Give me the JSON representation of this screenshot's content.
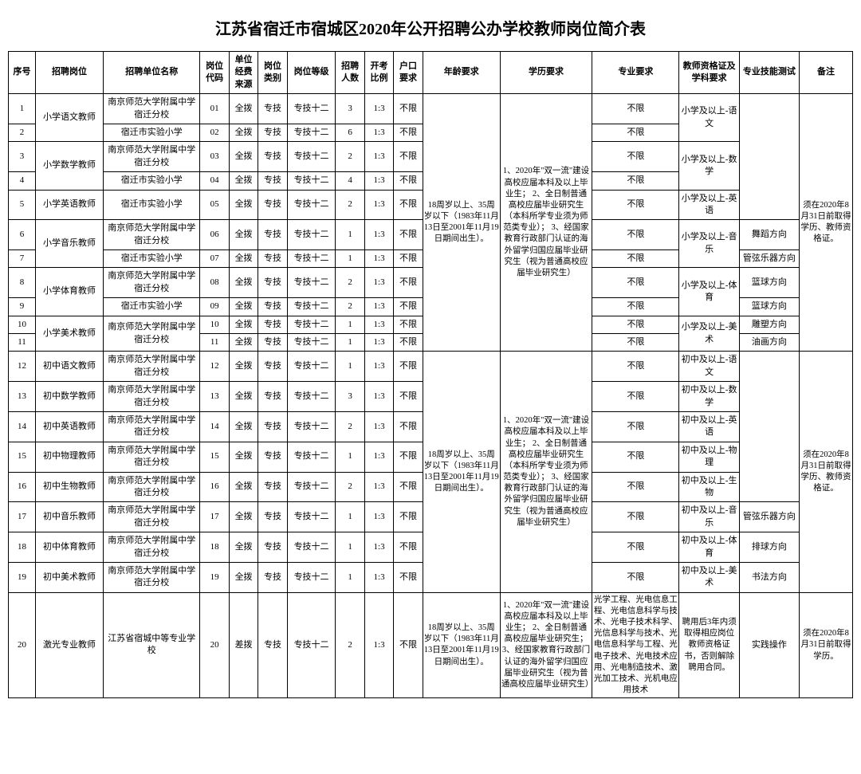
{
  "title": "江苏省宿迁市宿城区2020年公开招聘公办学校教师岗位简介表",
  "headers": {
    "seq": "序号",
    "position": "招聘岗位",
    "unit": "招聘单位名称",
    "code": "岗位代码",
    "fund": "单位经费来源",
    "category": "岗位类别",
    "level": "岗位等级",
    "num": "招聘人数",
    "ratio": "开考比例",
    "hukou": "户口要求",
    "age": "年龄要求",
    "edu": "学历要求",
    "major": "专业要求",
    "cert": "教师资格证及学科要求",
    "skill": "专业技能测试",
    "remark": "备注"
  },
  "common": {
    "fund": "全拨",
    "fund2": "差拨",
    "category": "专技",
    "level": "专技十二",
    "ratio": "1:3",
    "hukou": "不限",
    "major": "不限",
    "unitA": "南京师范大学附属中学宿迁分校",
    "unitB": "宿迁市实验小学",
    "unitC": "江苏省宿城中等专业学校"
  },
  "ageBlock1": "18周岁以上、35周岁以下（1983年11月13日至2001年11月19日期间出生）。",
  "ageBlock2": "18周岁以上、35周岁以下（1983年11月13日至2001年11月19日期间出生）。",
  "ageBlock3": "18周岁以上、35周岁以下（1983年11月13日至2001年11月19日期间出生）。",
  "eduBlock1": "1、2020年\"双一流\"建设高校应届本科及以上毕业生；\n2、全日制普通高校应届毕业研究生（本科所学专业须为师范类专业）；\n3、经国家教育行政部门认证的海外留学归国应届毕业研究生（视为普通高校应届毕业研究生）",
  "eduBlock2": "1、2020年\"双一流\"建设高校应届本科及以上毕业生；\n2、全日制普通高校应届毕业研究生（本科所学专业须为师范类专业）；\n3、经国家教育行政部门认证的海外留学归国应届毕业研究生（视为普通高校应届毕业研究生）",
  "eduBlock3": "1、2020年\"双一流\"建设高校应届本科及以上毕业生；\n2、全日制普通高校应届毕业研究生；\n3、经国家教育行政部门认证的海外留学归国应届毕业研究生（视为普通高校应届毕业研究生）",
  "remarkBlock1": "须在2020年8月31日前取得学历、教师资格证。",
  "remarkBlock2": "须在2020年8月31日前取得学历、教师资格证。",
  "remarkBlock3": "须在2020年8月31日前取得学历。",
  "majorBlock3": "光学工程、光电信息工程、光电信息科学与技术、光电子技术科学、光信息科学与技术、光电信息科学与工程、光电子技术、光电技术应用、光电制造技术、激光加工技术、光机电应用技术",
  "certBlock3": "聘用后3年内须取得相应岗位教师资格证书，否则解除聘用合同。",
  "rows": [
    {
      "seq": "1",
      "unit": "A",
      "code": "01",
      "num": "3"
    },
    {
      "seq": "2",
      "unit": "B",
      "code": "02",
      "num": "6"
    },
    {
      "seq": "3",
      "unit": "A",
      "code": "03",
      "num": "2"
    },
    {
      "seq": "4",
      "unit": "B",
      "code": "04",
      "num": "4"
    },
    {
      "seq": "5",
      "unit": "B",
      "code": "05",
      "num": "2"
    },
    {
      "seq": "6",
      "unit": "A",
      "code": "06",
      "num": "1"
    },
    {
      "seq": "7",
      "unit": "B",
      "code": "07",
      "num": "1"
    },
    {
      "seq": "8",
      "unit": "A",
      "code": "08",
      "num": "2"
    },
    {
      "seq": "9",
      "unit": "B",
      "code": "09",
      "num": "2"
    },
    {
      "seq": "10",
      "unit": "A",
      "code": "10",
      "num": "1"
    },
    {
      "seq": "11",
      "unit": "A",
      "code": "11",
      "num": "1"
    },
    {
      "seq": "12",
      "unit": "A",
      "code": "12",
      "num": "1"
    },
    {
      "seq": "13",
      "unit": "A",
      "code": "13",
      "num": "3"
    },
    {
      "seq": "14",
      "unit": "A",
      "code": "14",
      "num": "2"
    },
    {
      "seq": "15",
      "unit": "A",
      "code": "15",
      "num": "1"
    },
    {
      "seq": "16",
      "unit": "A",
      "code": "16",
      "num": "2"
    },
    {
      "seq": "17",
      "unit": "A",
      "code": "17",
      "num": "1"
    },
    {
      "seq": "18",
      "unit": "A",
      "code": "18",
      "num": "1"
    },
    {
      "seq": "19",
      "unit": "A",
      "code": "19",
      "num": "1"
    },
    {
      "seq": "20",
      "unit": "C",
      "code": "20",
      "num": "2"
    }
  ],
  "positions": {
    "p1": "小学语文教师",
    "p2": "小学数学教师",
    "p3": "小学英语教师",
    "p4": "小学音乐教师",
    "p5": "小学体育教师",
    "p6": "小学美术教师",
    "p7": "初中语文教师",
    "p8": "初中数学教师",
    "p9": "初中英语教师",
    "p10": "初中物理教师",
    "p11": "初中生物教师",
    "p12": "初中音乐教师",
    "p13": "初中体育教师",
    "p14": "初中美术教师",
    "p15": "激光专业教师"
  },
  "certs": {
    "c1": "小学及以上-语文",
    "c2": "小学及以上-数学",
    "c3": "小学及以上-英语",
    "c4": "小学及以上-音乐",
    "c5": "小学及以上-体育",
    "c6": "小学及以上-美术",
    "c7": "初中及以上-语文",
    "c8": "初中及以上-数学",
    "c9": "初中及以上-英语",
    "c10": "初中及以上-物理",
    "c11": "初中及以上-生物",
    "c12": "初中及以上-音乐",
    "c13": "初中及以上-体育",
    "c14": "初中及以上-美术"
  },
  "skills": {
    "s0": "",
    "s6a": "舞蹈方向",
    "s7": "管弦乐器方向",
    "s8": "篮球方向",
    "s9": "篮球方向",
    "s10": "雕塑方向",
    "s11": "油画方向",
    "s17": "管弦乐器方向",
    "s18": "排球方向",
    "s19": "书法方向",
    "s20": "实践操作"
  }
}
